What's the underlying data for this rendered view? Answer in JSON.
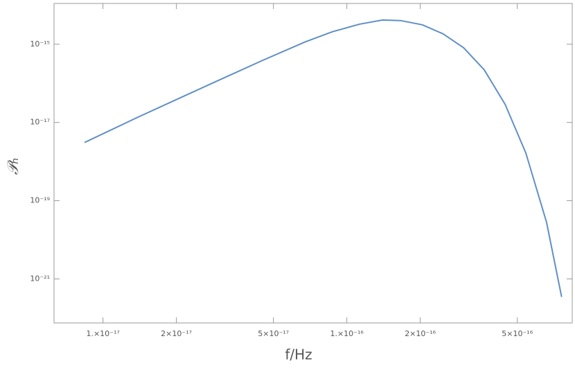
{
  "chart_data": {
    "type": "line",
    "log_x": true,
    "log_y": true,
    "xlabel": "f/Hz",
    "ylabel": "𝒫ₕ",
    "xlim": [
      6.3e-18,
      8.4e-16
    ],
    "ylim": [
      7.5e-23,
      1.1e-14
    ],
    "xticks": [
      {
        "value": 1e-17,
        "label": "1.×10⁻¹⁷"
      },
      {
        "value": 2e-17,
        "label": "2×10⁻¹⁷"
      },
      {
        "value": 5e-17,
        "label": "5×10⁻¹⁷"
      },
      {
        "value": 1e-16,
        "label": "1.×10⁻¹⁶"
      },
      {
        "value": 2e-16,
        "label": "2×10⁻¹⁶"
      },
      {
        "value": 5e-16,
        "label": "5×10⁻¹⁶"
      }
    ],
    "yticks": [
      {
        "value": 1e-15,
        "label": "10⁻¹⁵"
      },
      {
        "value": 1e-17,
        "label": "10⁻¹⁷"
      },
      {
        "value": 1e-19,
        "label": "10⁻¹⁹"
      },
      {
        "value": 1e-21,
        "label": "10⁻²¹"
      }
    ],
    "series": [
      {
        "color": "#5e8fc6",
        "x": [
          8.4e-18,
          1.4e-17,
          2.08e-17,
          3.07e-17,
          4.54e-17,
          6.71e-17,
          8.72e-17,
          1.13e-16,
          1.4e-16,
          1.67e-16,
          2.04e-16,
          2.48e-16,
          3.01e-16,
          3.66e-16,
          4.46e-16,
          5.42e-16,
          6.59e-16,
          7.6e-16
        ],
        "values": [
          3.07e-18,
          1.39e-17,
          4.3e-17,
          1.3e-16,
          3.92e-16,
          1.13e-15,
          2.08e-15,
          3.26e-15,
          4.16e-15,
          4e-15,
          3.13e-15,
          1.84e-15,
          8.15e-16,
          2.21e-16,
          2.88e-17,
          1.66e-18,
          2.82e-20,
          3.47e-22
        ]
      }
    ]
  }
}
